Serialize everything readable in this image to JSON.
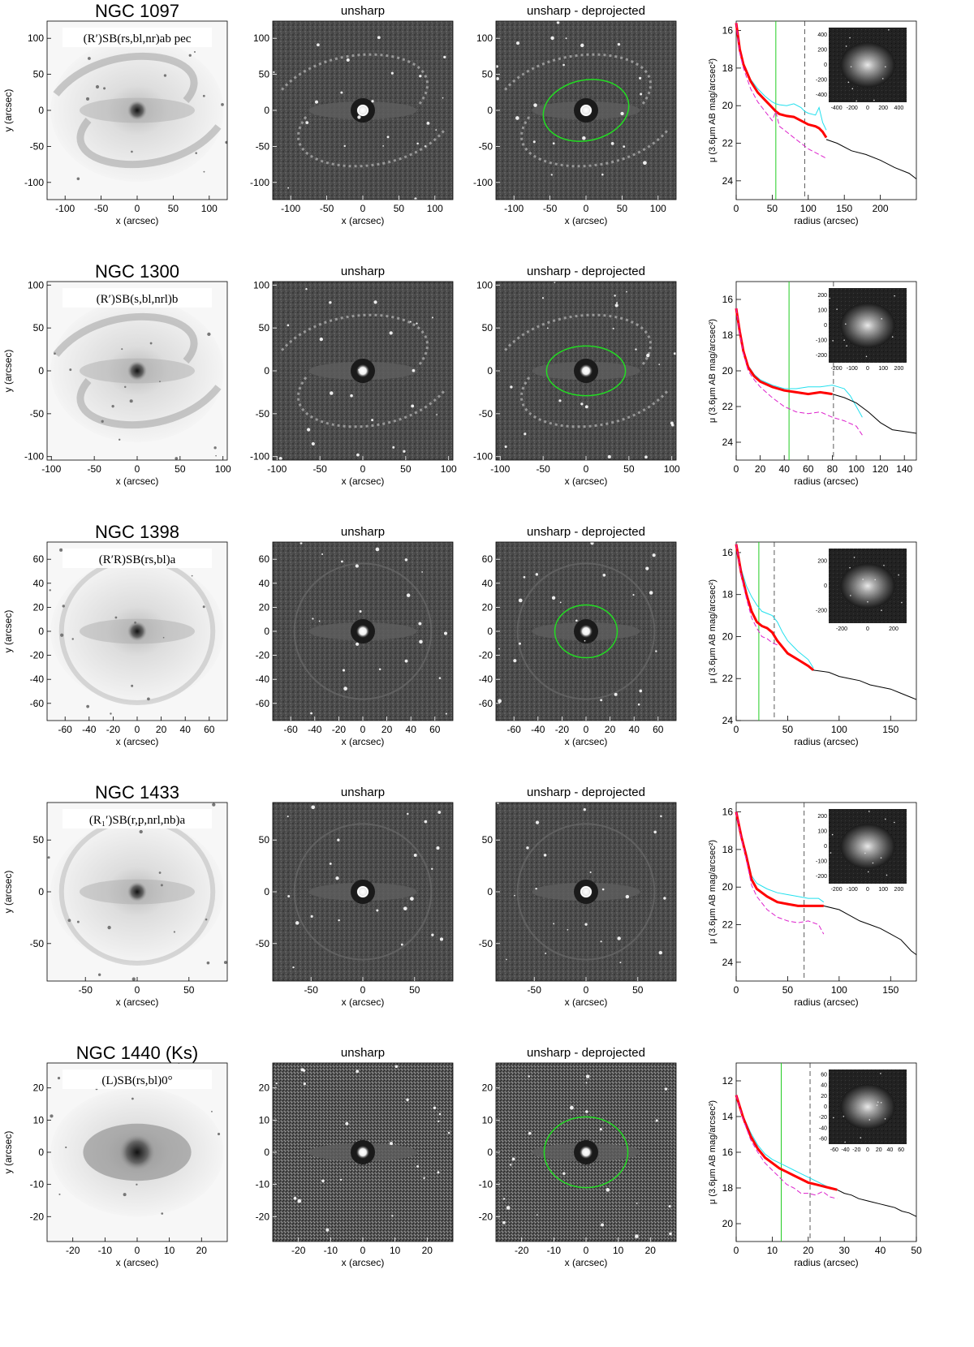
{
  "labels": {
    "xlabel": "x (arcsec)",
    "ylabel": "y (arcsec)",
    "panel2_title": "unsharp",
    "panel3_title": "unsharp - deprojected",
    "profile_xlabel": "radius (arcsec)",
    "profile_ylabel": "μ (3.6μm AB mag/arcsec²)"
  },
  "colors": {
    "ellipse": "#22dd22",
    "profile_main": "#ff0000",
    "profile_cyan": "#22e0ee",
    "profile_magenta": "#dd22cc",
    "profile_black": "#000000",
    "green_line": "#22cc22"
  },
  "galaxies": [
    {
      "name": "NGC 1097",
      "hubble_type": "(R′)SB(rs,bl,nr)ab pec",
      "img_ticks": [
        -100,
        -50,
        0,
        50,
        100
      ],
      "img_range": 125,
      "ellipse": true,
      "ellipse_rx_arcsec": 60,
      "ellipse_ry_arcsec": 42,
      "ellipse_tilt_deg": -12,
      "morphology": "barred spiral with nuclear ring",
      "inset_ticks": [
        -400,
        -200,
        0,
        200,
        400
      ],
      "chart_data": {
        "type": "line",
        "xlim": [
          0,
          250
        ],
        "ylim": [
          25,
          15.5
        ],
        "xticks": [
          0,
          50,
          100,
          150,
          200
        ],
        "yticks": [
          16,
          18,
          20,
          22,
          24
        ],
        "green_x": 55,
        "dashed_x": 95,
        "series": [
          {
            "color_key": "profile_cyan",
            "x": [
              0,
              5,
              10,
              20,
              30,
              40,
              50,
              55,
              60,
              70,
              80,
              90,
              95,
              100,
              110,
              115,
              120,
              125
            ],
            "y": [
              15.6,
              16.9,
              17.7,
              18.6,
              19.1,
              19.5,
              19.8,
              19.9,
              19.95,
              20.0,
              19.9,
              20.1,
              20.3,
              20.4,
              20.5,
              20.1,
              20.9,
              21.3
            ]
          },
          {
            "color_key": "profile_main",
            "x": [
              0,
              5,
              10,
              20,
              30,
              40,
              50,
              55,
              60,
              70,
              80,
              90,
              100,
              110,
              115,
              120,
              125
            ],
            "y": [
              15.6,
              17.0,
              17.8,
              18.7,
              19.3,
              19.7,
              20.1,
              20.3,
              20.45,
              20.55,
              20.6,
              20.8,
              21.0,
              21.1,
              21.2,
              21.4,
              21.7
            ]
          },
          {
            "color_key": "profile_magenta",
            "x": [
              0,
              5,
              10,
              20,
              30,
              40,
              50,
              55,
              60,
              70,
              80,
              90,
              100,
              110,
              125
            ],
            "y": [
              15.6,
              17.2,
              18.0,
              19.1,
              19.8,
              20.3,
              20.8,
              20.3,
              21.1,
              21.4,
              21.7,
              22.0,
              22.3,
              22.5,
              22.8
            ]
          },
          {
            "color_key": "profile_black",
            "x": [
              125,
              140,
              160,
              180,
              200,
              220,
              240,
              250
            ],
            "y": [
              21.8,
              22.0,
              22.4,
              22.6,
              22.9,
              23.3,
              23.6,
              23.9
            ]
          }
        ]
      }
    },
    {
      "name": "NGC 1300",
      "hubble_type": "(R′)SB(s,bl,nrl)b",
      "img_ticks": [
        -100,
        -50,
        0,
        50,
        100
      ],
      "img_range": 105,
      "ellipse": true,
      "ellipse_rx_arcsec": 46,
      "ellipse_ry_arcsec": 29,
      "ellipse_tilt_deg": 0,
      "morphology": "barred spiral with long arms",
      "inset_ticks": [
        -200,
        -100,
        0,
        100,
        200
      ],
      "chart_data": {
        "type": "line",
        "xlim": [
          0,
          150
        ],
        "ylim": [
          25,
          15
        ],
        "xticks": [
          0,
          20,
          40,
          60,
          80,
          100,
          120,
          140
        ],
        "yticks": [
          16,
          18,
          20,
          22,
          24
        ],
        "green_x": 44,
        "dashed_x": 81,
        "series": [
          {
            "color_key": "profile_cyan",
            "x": [
              0,
              3,
              6,
              10,
              15,
              20,
              30,
              40,
              50,
              60,
              70,
              80,
              85,
              90,
              95,
              100,
              105
            ],
            "y": [
              16.5,
              17.8,
              18.8,
              19.7,
              20.2,
              20.5,
              20.8,
              21.0,
              21.0,
              20.9,
              20.9,
              20.8,
              20.9,
              21.0,
              21.4,
              22.0,
              22.6
            ]
          },
          {
            "color_key": "profile_main",
            "x": [
              0,
              3,
              6,
              10,
              15,
              20,
              30,
              40,
              50,
              60,
              70,
              80
            ],
            "y": [
              16.5,
              17.8,
              18.9,
              19.8,
              20.3,
              20.6,
              20.9,
              21.1,
              21.2,
              21.3,
              21.2,
              21.3
            ]
          },
          {
            "color_key": "profile_magenta",
            "x": [
              0,
              3,
              6,
              10,
              15,
              20,
              30,
              40,
              50,
              60,
              70,
              80,
              90,
              100,
              105
            ],
            "y": [
              16.5,
              17.9,
              19.0,
              20.0,
              20.5,
              20.9,
              21.5,
              22.0,
              22.3,
              22.4,
              22.3,
              22.6,
              22.8,
              23.1,
              23.6
            ]
          },
          {
            "color_key": "profile_black",
            "x": [
              80,
              90,
              100,
              110,
              120,
              130,
              140,
              150
            ],
            "y": [
              21.3,
              21.5,
              21.8,
              22.3,
              22.9,
              23.3,
              23.4,
              23.5
            ]
          }
        ]
      }
    },
    {
      "name": "NGC 1398",
      "hubble_type": "(R′R)SB(rs,bl)a",
      "img_ticks": [
        -60,
        -40,
        -20,
        0,
        20,
        40,
        60
      ],
      "img_range": 75,
      "ellipse": true,
      "ellipse_rx_arcsec": 26,
      "ellipse_ry_arcsec": 22,
      "ellipse_tilt_deg": 0,
      "morphology": "barred galaxy with outer rings",
      "inset_ticks": [
        -200,
        0,
        200
      ],
      "chart_data": {
        "type": "line",
        "xlim": [
          0,
          175
        ],
        "ylim": [
          24,
          15.5
        ],
        "xticks": [
          0,
          50,
          100,
          150
        ],
        "yticks": [
          16,
          18,
          20,
          22,
          24
        ],
        "green_x": 22,
        "dashed_x": 37,
        "series": [
          {
            "color_key": "profile_cyan",
            "x": [
              0,
              5,
              10,
              15,
              20,
              25,
              30,
              35,
              40,
              45,
              50,
              60,
              70,
              75
            ],
            "y": [
              15.6,
              16.8,
              17.6,
              18.1,
              18.5,
              18.8,
              18.9,
              19.0,
              19.3,
              19.8,
              20.2,
              20.7,
              21.1,
              21.5
            ]
          },
          {
            "color_key": "profile_main",
            "x": [
              0,
              5,
              10,
              15,
              20,
              25,
              30,
              35,
              40,
              45,
              50,
              60,
              70,
              75
            ],
            "y": [
              15.6,
              17.0,
              18.0,
              18.8,
              19.3,
              19.5,
              19.6,
              19.8,
              20.2,
              20.5,
              20.8,
              21.1,
              21.4,
              21.6
            ]
          },
          {
            "color_key": "profile_magenta",
            "x": [
              0,
              5,
              10,
              15,
              20,
              25,
              30,
              35,
              40
            ],
            "y": [
              15.6,
              17.1,
              18.2,
              19.1,
              19.6,
              20.0,
              20.1,
              20.3,
              20.4
            ]
          },
          {
            "color_key": "profile_black",
            "x": [
              75,
              90,
              100,
              110,
              120,
              130,
              140,
              150,
              160,
              170,
              175
            ],
            "y": [
              21.6,
              21.7,
              21.9,
              22.0,
              22.1,
              22.3,
              22.4,
              22.5,
              22.7,
              22.9,
              23.0
            ]
          }
        ]
      }
    },
    {
      "name": "NGC 1433",
      "hubble_type": "(R₁′)SB(r,p,nrl,nb)a",
      "img_ticks": [
        -50,
        0,
        50
      ],
      "img_range": 87,
      "ellipse": false,
      "ellipse_rx_arcsec": 0,
      "ellipse_ry_arcsec": 0,
      "ellipse_tilt_deg": 0,
      "morphology": "barred galaxy with nuclear ring",
      "inset_ticks": [
        -200,
        -100,
        0,
        100,
        200
      ],
      "chart_data": {
        "type": "line",
        "xlim": [
          0,
          175
        ],
        "ylim": [
          25,
          15.5
        ],
        "xticks": [
          0,
          50,
          100,
          150
        ],
        "yticks": [
          16,
          18,
          20,
          22,
          24
        ],
        "green_x": null,
        "dashed_x": 66,
        "series": [
          {
            "color_key": "profile_cyan",
            "x": [
              0,
              5,
              10,
              15,
              20,
              30,
              40,
              50,
              60,
              70,
              80,
              85
            ],
            "y": [
              16.0,
              17.2,
              18.2,
              19.4,
              19.8,
              20.1,
              20.3,
              20.4,
              20.5,
              20.6,
              20.6,
              20.8
            ]
          },
          {
            "color_key": "profile_main",
            "x": [
              0,
              5,
              10,
              15,
              20,
              30,
              40,
              50,
              60,
              70,
              80,
              85
            ],
            "y": [
              16.0,
              17.3,
              18.4,
              19.6,
              20.1,
              20.5,
              20.8,
              20.9,
              21.0,
              21.0,
              21.0,
              21.0
            ]
          },
          {
            "color_key": "profile_magenta",
            "x": [
              0,
              5,
              10,
              15,
              20,
              30,
              40,
              50,
              60,
              70,
              80,
              85
            ],
            "y": [
              16.0,
              17.4,
              18.6,
              19.9,
              20.5,
              21.2,
              21.6,
              21.8,
              21.9,
              21.8,
              22.0,
              22.5
            ]
          },
          {
            "color_key": "profile_black",
            "x": [
              85,
              100,
              110,
              120,
              130,
              140,
              150,
              160,
              170,
              175
            ],
            "y": [
              21.0,
              21.2,
              21.5,
              21.8,
              22.0,
              22.2,
              22.5,
              22.8,
              23.4,
              23.6
            ]
          }
        ]
      }
    },
    {
      "name": "NGC 1440",
      "band": "(Ks)",
      "hubble_type": "(L)SB(rs,bl)0°",
      "img_ticks": [
        -20,
        -10,
        0,
        10,
        20
      ],
      "img_range": 28,
      "ellipse": true,
      "ellipse_rx_arcsec": 13,
      "ellipse_ry_arcsec": 11,
      "ellipse_tilt_deg": 0,
      "morphology": "lenticular galaxy with faint bar",
      "inset_ticks": [
        -60,
        -40,
        -20,
        0,
        20,
        40,
        60
      ],
      "chart_data": {
        "type": "line",
        "xlim": [
          0,
          50
        ],
        "ylim": [
          21,
          11
        ],
        "xticks": [
          0,
          10,
          20,
          30,
          40,
          50
        ],
        "yticks": [
          12,
          14,
          16,
          18,
          20
        ],
        "green_x": 12.5,
        "dashed_x": 20.5,
        "series": [
          {
            "color_key": "profile_cyan",
            "x": [
              0,
              2,
              4,
              6,
              8,
              10,
              12,
              14,
              16,
              18,
              20,
              22,
              24,
              26,
              28
            ],
            "y": [
              12.8,
              14.0,
              14.9,
              15.6,
              16.1,
              16.4,
              16.6,
              16.8,
              17.0,
              17.2,
              17.4,
              17.6,
              17.8,
              18.0,
              18.1
            ]
          },
          {
            "color_key": "profile_main",
            "x": [
              0,
              2,
              4,
              6,
              8,
              10,
              12,
              14,
              16,
              18,
              20,
              22,
              24,
              26,
              28
            ],
            "y": [
              12.8,
              14.1,
              15.1,
              15.8,
              16.3,
              16.6,
              16.9,
              17.1,
              17.3,
              17.5,
              17.7,
              17.8,
              17.9,
              18.0,
              18.1
            ]
          },
          {
            "color_key": "profile_magenta",
            "x": [
              0,
              2,
              4,
              6,
              8,
              10,
              12,
              14,
              16,
              18,
              20,
              22,
              24,
              26,
              28
            ],
            "y": [
              12.8,
              14.2,
              15.3,
              16.0,
              16.6,
              17.0,
              17.4,
              17.8,
              18.0,
              18.3,
              18.3,
              18.4,
              18.2,
              18.5,
              18.6
            ]
          },
          {
            "color_key": "profile_black",
            "x": [
              28,
              30,
              32,
              34,
              36,
              38,
              40,
              42,
              44,
              46,
              48,
              50
            ],
            "y": [
              18.1,
              18.3,
              18.4,
              18.6,
              18.7,
              18.8,
              18.9,
              19.0,
              19.1,
              19.3,
              19.4,
              19.6
            ]
          }
        ]
      }
    }
  ]
}
